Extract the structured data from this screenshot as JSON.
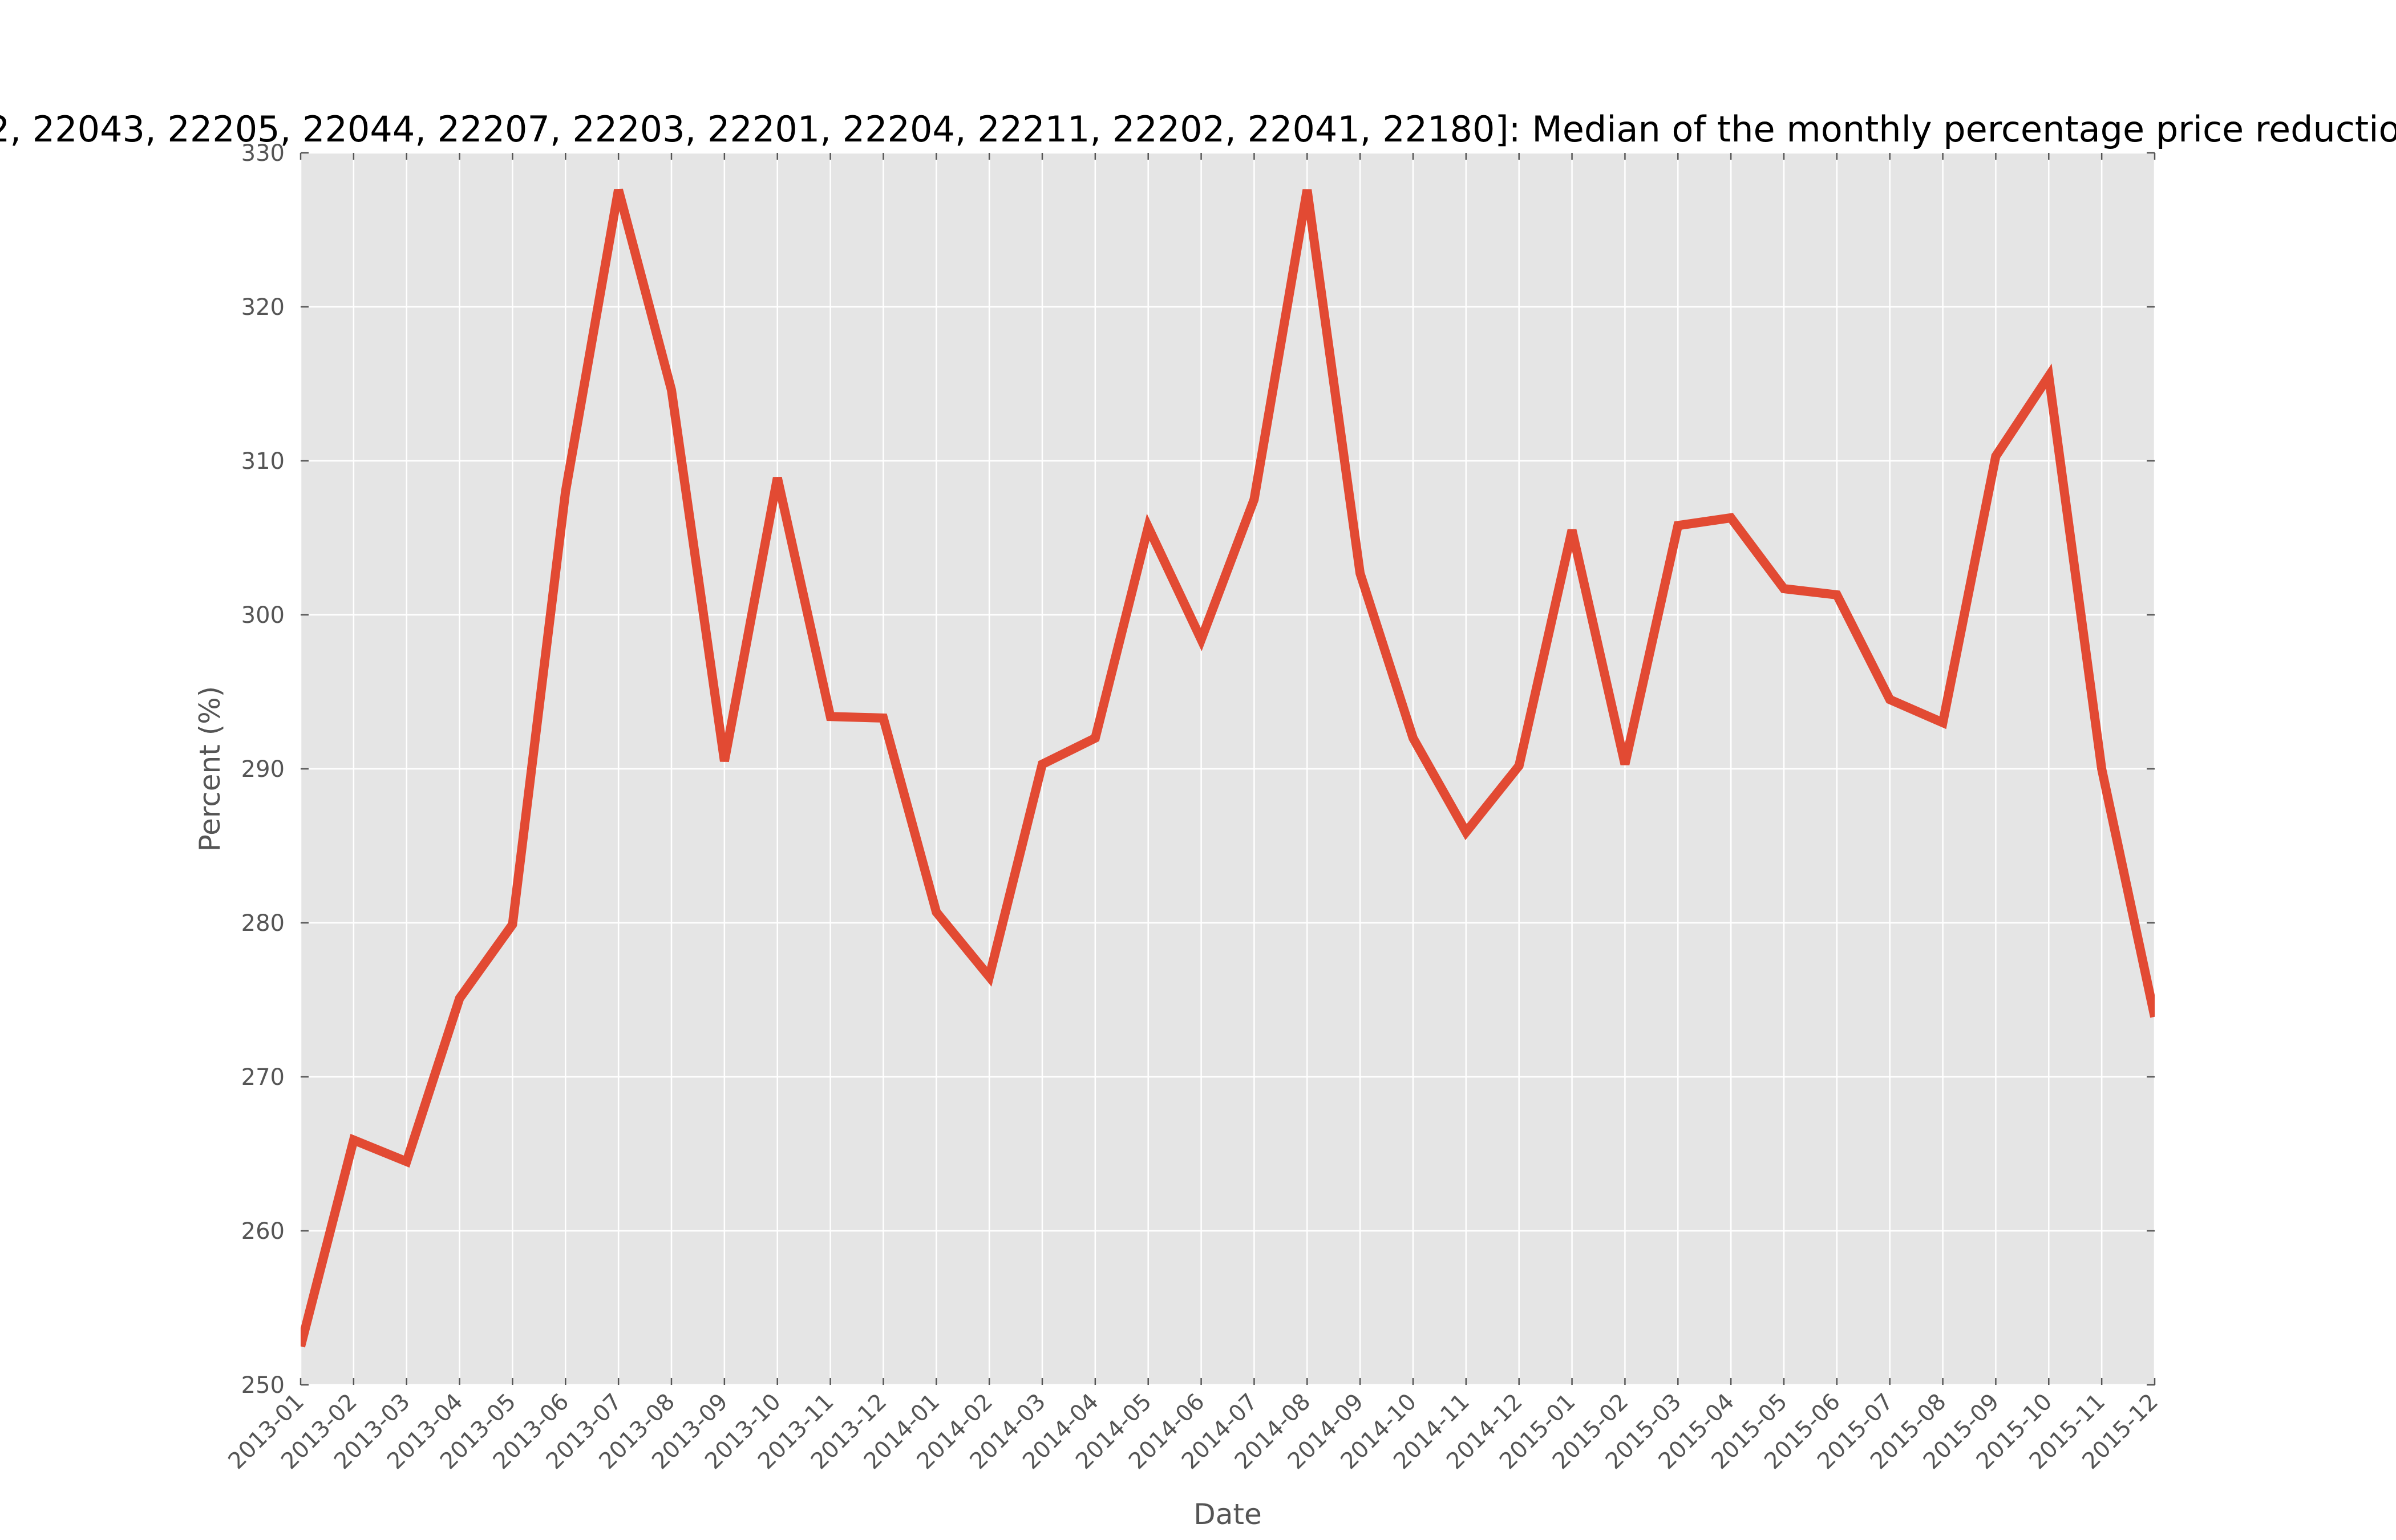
{
  "chart_data": {
    "type": "line",
    "title": "2, 22043, 22205, 22044, 22207, 22203, 22201, 22204, 22211, 22202, 22041, 22180]: Median of the monthly percentage price reduction fo",
    "xlabel": "Date",
    "ylabel": "Percent (%)",
    "ylim": [
      250,
      330
    ],
    "yticks": [
      250,
      260,
      270,
      280,
      290,
      300,
      310,
      320,
      330
    ],
    "grid": true,
    "colors": {
      "series": "#e24a33",
      "background": "#e5e5e5",
      "grid": "#ffffff"
    },
    "categories": [
      "2013-01",
      "2013-02",
      "2013-03",
      "2013-04",
      "2013-05",
      "2013-06",
      "2013-07",
      "2013-08",
      "2013-09",
      "2013-10",
      "2013-11",
      "2013-12",
      "2014-01",
      "2014-02",
      "2014-03",
      "2014-04",
      "2014-05",
      "2014-06",
      "2014-07",
      "2014-08",
      "2014-09",
      "2014-10",
      "2014-11",
      "2014-12",
      "2015-01",
      "2015-02",
      "2015-03",
      "2015-04",
      "2015-05",
      "2015-06",
      "2015-07",
      "2015-08",
      "2015-09",
      "2015-10",
      "2015-11",
      "2015-12"
    ],
    "series": [
      {
        "values": [
          252.5,
          265.9,
          264.5,
          275.1,
          279.9,
          308.0,
          327.6,
          314.6,
          290.5,
          308.9,
          293.4,
          293.3,
          280.7,
          276.5,
          290.3,
          292.0,
          305.7,
          298.4,
          307.5,
          327.6,
          302.7,
          292.0,
          285.9,
          290.2,
          305.5,
          290.3,
          305.8,
          306.3,
          301.7,
          301.3,
          294.5,
          293.0,
          310.3,
          315.5,
          290.0,
          273.9
        ]
      }
    ]
  }
}
